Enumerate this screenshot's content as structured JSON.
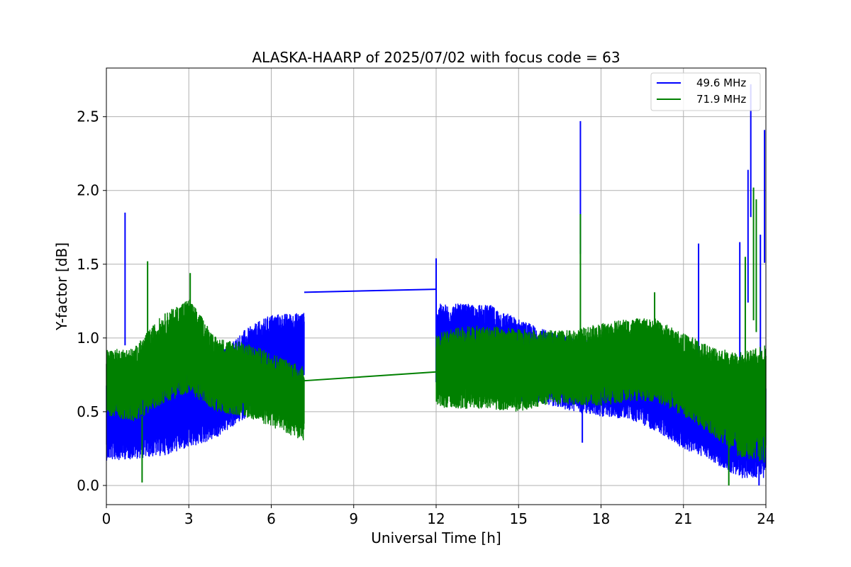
{
  "chart_data": {
    "type": "line",
    "title": "ALASKA-HAARP of 2025/07/02 with focus code = 63",
    "xlabel": "Universal Time [h]",
    "ylabel": "Y-factor [dB]",
    "xlim": [
      0,
      24
    ],
    "ylim": [
      -0.13,
      2.83
    ],
    "xticks": [
      0,
      3,
      6,
      9,
      12,
      15,
      18,
      21,
      24
    ],
    "xtick_labels": [
      "0",
      "3",
      "6",
      "9",
      "12",
      "15",
      "18",
      "21",
      "24"
    ],
    "yticks": [
      0.0,
      0.5,
      1.0,
      1.5,
      2.0,
      2.5
    ],
    "ytick_labels": [
      "0.0",
      "0.5",
      "1.0",
      "1.5",
      "2.0",
      "2.5"
    ],
    "grid": true,
    "legend_position": "top-right",
    "gap": [
      7.2,
      12.0
    ],
    "series": [
      {
        "name": "49.6 MHz",
        "color": "#0000ff",
        "segments": [
          {
            "x": [
              0,
              1,
              2,
              3,
              4,
              5,
              6,
              7.2
            ],
            "mean": [
              0.45,
              0.48,
              0.52,
              0.55,
              0.6,
              0.75,
              0.88,
              0.95
            ],
            "amp": [
              0.28,
              0.3,
              0.32,
              0.3,
              0.28,
              0.3,
              0.28,
              0.22
            ]
          },
          {
            "x": [
              12,
              13,
              14,
              15,
              16,
              17,
              18,
              19,
              20,
              21,
              22,
              23,
              24
            ],
            "mean": [
              0.95,
              0.95,
              0.92,
              0.85,
              0.8,
              0.75,
              0.72,
              0.7,
              0.62,
              0.5,
              0.42,
              0.35,
              0.4
            ],
            "amp": [
              0.28,
              0.28,
              0.3,
              0.28,
              0.25,
              0.25,
              0.25,
              0.25,
              0.25,
              0.25,
              0.25,
              0.3,
              0.35
            ]
          }
        ],
        "bridge": {
          "x": [
            7.2,
            12.0
          ],
          "y": [
            1.31,
            1.33
          ]
        },
        "spikes": [
          {
            "x": 0.68,
            "y": 1.85
          },
          {
            "x": 12.0,
            "y": 1.54
          },
          {
            "x": 17.25,
            "y": 2.47
          },
          {
            "x": 21.55,
            "y": 1.64
          },
          {
            "x": 23.05,
            "y": 1.65
          },
          {
            "x": 23.35,
            "y": 2.14
          },
          {
            "x": 23.45,
            "y": 2.72
          },
          {
            "x": 23.8,
            "y": 1.7
          },
          {
            "x": 23.95,
            "y": 2.41
          },
          {
            "x": 23.75,
            "y": 0.0
          },
          {
            "x": 17.32,
            "y": 0.29
          }
        ]
      },
      {
        "name": "71.9 MHz",
        "color": "#008000",
        "segments": [
          {
            "x": [
              0,
              1,
              2,
              3,
              4,
              5,
              6,
              7.2
            ],
            "mean": [
              0.7,
              0.68,
              0.85,
              0.95,
              0.75,
              0.72,
              0.65,
              0.55
            ],
            "amp": [
              0.22,
              0.25,
              0.3,
              0.32,
              0.25,
              0.25,
              0.25,
              0.25
            ]
          },
          {
            "x": [
              12,
              13,
              14,
              15,
              16,
              17,
              18,
              19,
              20,
              21,
              22,
              23,
              24
            ],
            "mean": [
              0.78,
              0.8,
              0.8,
              0.78,
              0.8,
              0.8,
              0.82,
              0.85,
              0.85,
              0.75,
              0.65,
              0.55,
              0.55
            ],
            "amp": [
              0.25,
              0.28,
              0.28,
              0.28,
              0.25,
              0.25,
              0.28,
              0.28,
              0.28,
              0.28,
              0.3,
              0.35,
              0.4
            ]
          }
        ],
        "bridge": {
          "x": [
            7.2,
            12.0
          ],
          "y": [
            0.71,
            0.77
          ]
        },
        "spikes": [
          {
            "x": 1.5,
            "y": 1.52
          },
          {
            "x": 1.3,
            "y": 0.02
          },
          {
            "x": 3.05,
            "y": 1.44
          },
          {
            "x": 17.25,
            "y": 1.84
          },
          {
            "x": 19.95,
            "y": 1.31
          },
          {
            "x": 22.65,
            "y": 0.0
          },
          {
            "x": 23.55,
            "y": 2.02
          },
          {
            "x": 23.65,
            "y": 1.94
          },
          {
            "x": 23.25,
            "y": 1.55
          }
        ]
      }
    ]
  }
}
